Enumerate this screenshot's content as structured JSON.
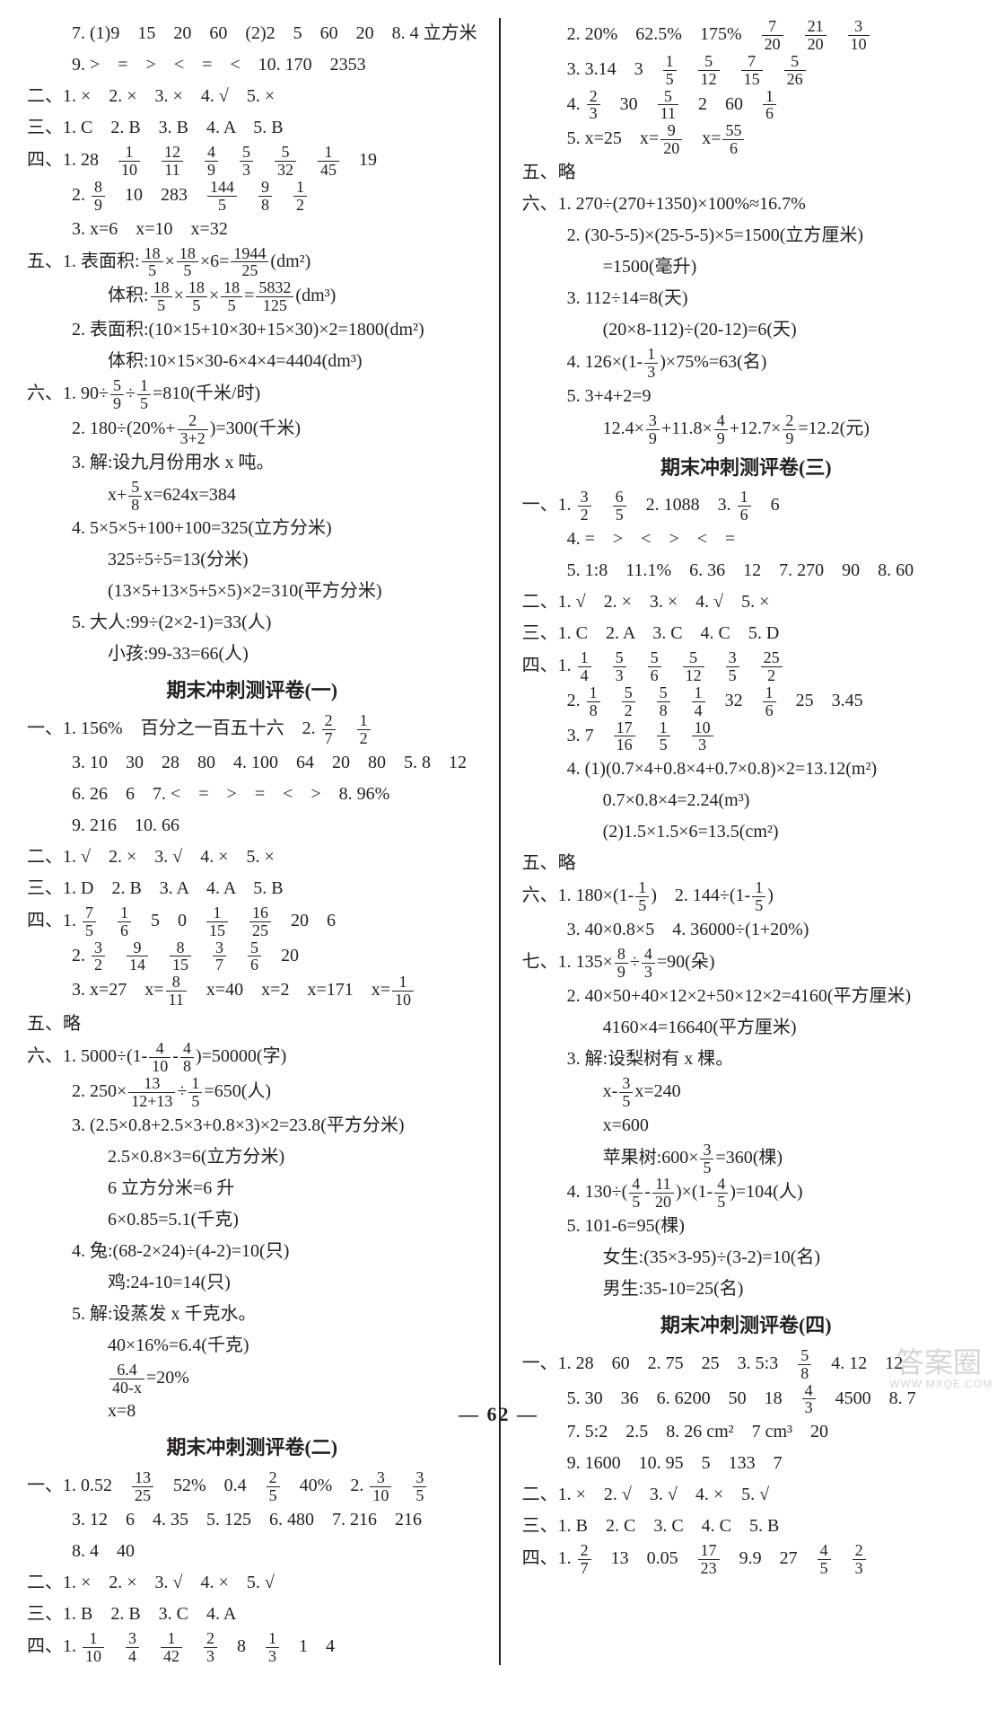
{
  "page_number": "62",
  "page_decoration": "— 62 —",
  "watermark": {
    "main": "答案圈",
    "url": "WWW.MXQE.COM"
  },
  "colors": {
    "text": "#231f20",
    "bg": "#ffffff",
    "divider": "#231f20",
    "watermark": "#888888"
  },
  "font": {
    "family": "SimSun",
    "base_size": 20,
    "heading_size": 22,
    "frac_size": 18
  },
  "left": {
    "l1": "7. (1)9　15　20　60　(2)2　5　60　20　8. 4 立方米",
    "l2": "9. >　=　>　<　=　<　10. 170　2353",
    "l3": "二、1. ×　2. ×　3. ×　4. √　5. ×",
    "l4": "三、1. C　2. B　3. B　4. A　5. B",
    "l5a": "四、1. 28　",
    "f5": [
      [
        "1",
        "10"
      ],
      [
        "12",
        "11"
      ],
      [
        "4",
        "9"
      ],
      [
        "5",
        "3"
      ],
      [
        "5",
        "32"
      ],
      [
        "1",
        "45"
      ]
    ],
    "l5b": "　19",
    "l6a": "2. ",
    "f6": [
      [
        "8",
        "9"
      ]
    ],
    "l6b": "　10　283　",
    "f6c": [
      [
        "144",
        "5"
      ],
      [
        "9",
        "8"
      ],
      [
        "1",
        "2"
      ]
    ],
    "l7": "3. x=6　x=10　x=32",
    "l8a": "五、1. 表面积:",
    "f8a": [
      "18",
      "5"
    ],
    "l8b": "×",
    "f8c": [
      "18",
      "5"
    ],
    "l8d": "×6=",
    "f8e": [
      "1944",
      "25"
    ],
    "l8f": "(dm²)",
    "l9a": "体积:",
    "f9a": [
      "18",
      "5"
    ],
    "l9b": "×",
    "f9c": [
      "18",
      "5"
    ],
    "l9d": "×",
    "f9e": [
      "18",
      "5"
    ],
    "l9f": "=",
    "f9g": [
      "5832",
      "125"
    ],
    "l9h": "(dm³)",
    "l10": "2. 表面积:(10×15+10×30+15×30)×2=1800(dm²)",
    "l11": "体积:10×15×30-6×4×4=4404(dm³)",
    "l12a": "六、1. 90÷",
    "f12a": [
      "5",
      "9"
    ],
    "l12b": "÷",
    "f12c": [
      "1",
      "5"
    ],
    "l12d": "=810(千米/时)",
    "l13a": "2. 180÷(20%+",
    "f13a": [
      "2",
      "3+2"
    ],
    "l13b": ")=300(千米)",
    "l14": "3. 解:设九月份用水 x 吨。",
    "l15a": "x+",
    "f15a": [
      "5",
      "8"
    ],
    "l15b": "x=624x=384",
    "l16": "4. 5×5×5+100+100=325(立方分米)",
    "l17": "325÷5÷5=13(分米)",
    "l18": "(13×5+13×5+5×5)×2=310(平方分米)",
    "l19": "5. 大人:99÷(2×2-1)=33(人)",
    "l20": "小孩:99-33=66(人)",
    "h1": "期末冲刺测评卷(一)",
    "l21a": "一、1. 156%　百分之一百五十六　2. ",
    "f21": [
      [
        "2",
        "7"
      ],
      [
        "1",
        "2"
      ]
    ],
    "l22": "3. 10　30　28　80　4. 100　64　20　80　5. 8　12",
    "l23": "6. 26　6　7. <　=　>　=　<　>　8. 96%",
    "l24": "9. 216　10. 66",
    "l25": "二、1. √　2. ×　3. √　4. ×　5. ×",
    "l26": "三、1. D　2. B　3. A　4. A　5. B",
    "l27a": "四、1. ",
    "f27": [
      [
        "7",
        "5"
      ],
      [
        "1",
        "6"
      ]
    ],
    "l27b": "　5　0　",
    "f27c": [
      [
        "1",
        "15"
      ],
      [
        "16",
        "25"
      ]
    ],
    "l27d": "　20　6",
    "l28a": "2. ",
    "f28": [
      [
        "3",
        "2"
      ],
      [
        "9",
        "14"
      ],
      [
        "8",
        "15"
      ],
      [
        "3",
        "7"
      ],
      [
        "5",
        "6"
      ]
    ],
    "l28b": "　20",
    "l29a": "3. x=27　x=",
    "f29a": [
      "8",
      "11"
    ],
    "l29b": "　x=40　x=2　x=171　x=",
    "f29c": [
      "1",
      "10"
    ],
    "l30": "五、略",
    "l31a": "六、1. 5000÷(1-",
    "f31a": [
      "4",
      "10"
    ],
    "l31b": "-",
    "f31c": [
      "4",
      "8"
    ],
    "l31d": ")=50000(字)",
    "l32a": "2. 250×",
    "f32a": [
      "13",
      "12+13"
    ],
    "l32b": "÷",
    "f32c": [
      "1",
      "5"
    ],
    "l32d": "=650(人)",
    "l33": "3. (2.5×0.8+2.5×3+0.8×3)×2=23.8(平方分米)",
    "l34": "2.5×0.8×3=6(立方分米)",
    "l35": "6 立方分米=6 升",
    "l36": "6×0.85=5.1(千克)",
    "l37": "4. 兔:(68-2×24)÷(4-2)=10(只)",
    "l38": "鸡:24-10=14(只)",
    "l39": "5. 解:设蒸发 x 千克水。",
    "l40": "40×16%=6.4(千克)",
    "l41a": "",
    "f41": [
      "6.4",
      "40-x"
    ],
    "l41b": "=20%",
    "l42": "x=8",
    "h2": "期末冲刺测评卷(二)",
    "l43a": "一、1. 0.52　",
    "f43a": [
      "13",
      "25"
    ],
    "l43b": "　52%　0.4　",
    "f43c": [
      "2",
      "5"
    ],
    "l43d": "　40%　2. ",
    "f43e": [
      [
        "3",
        "10"
      ],
      [
        "3",
        "5"
      ]
    ],
    "l44": "3. 12　6　4. 35　5. 125　6. 480　7. 216　216",
    "l45": "8. 4　40",
    "l46": "二、1. ×　2. ×　3. √　4. ×　5. √",
    "l47": "三、1. B　2. B　3. C　4. A",
    "l48a": "四、1. ",
    "f48": [
      [
        "1",
        "10"
      ],
      [
        "3",
        "4"
      ],
      [
        "1",
        "42"
      ],
      [
        "2",
        "3"
      ]
    ],
    "l48b": "　8　",
    "f48c": [
      "1",
      "3"
    ],
    "l48d": "　1　4"
  },
  "right": {
    "r1a": "2. 20%　62.5%　175%　",
    "r1f": [
      [
        "7",
        "20"
      ],
      [
        "21",
        "20"
      ],
      [
        "3",
        "10"
      ]
    ],
    "r2a": "3. 3.14　3　",
    "r2f": [
      [
        "1",
        "5"
      ],
      [
        "5",
        "12"
      ],
      [
        "7",
        "15"
      ],
      [
        "5",
        "26"
      ]
    ],
    "r3a": "4. ",
    "r3f1": [
      "2",
      "3"
    ],
    "r3b": "　30　",
    "r3f2": [
      "5",
      "11"
    ],
    "r3c": "　2　60　",
    "r3f3": [
      "1",
      "6"
    ],
    "r4a": "5. x=25　x=",
    "r4f1": [
      "9",
      "20"
    ],
    "r4b": "　x=",
    "r4f2": [
      "55",
      "6"
    ],
    "r5": "五、略",
    "r6": "六、1. 270÷(270+1350)×100%≈16.7%",
    "r7": "2. (30-5-5)×(25-5-5)×5=1500(立方厘米)",
    "r7b": "=1500(毫升)",
    "r8": "3. 112÷14=8(天)",
    "r9": "(20×8-112)÷(20-12)=6(天)",
    "r10a": "4. 126×(1-",
    "r10f": [
      "1",
      "3"
    ],
    "r10b": ")×75%=63(名)",
    "r11": "5. 3+4+2=9",
    "r12a": "12.4×",
    "r12f1": [
      "3",
      "9"
    ],
    "r12b": "+11.8×",
    "r12f2": [
      "4",
      "9"
    ],
    "r12c": "+12.7×",
    "r12f3": [
      "2",
      "9"
    ],
    "r12d": "=12.2(元)",
    "h3": "期末冲刺测评卷(三)",
    "r13a": "一、1. ",
    "r13f": [
      [
        "3",
        "2"
      ],
      [
        "6",
        "5"
      ]
    ],
    "r13b": "　2. 1088　3. ",
    "r13f2": [
      "1",
      "6"
    ],
    "r13c": "　6",
    "r14": "4. =　>　<　>　<　=",
    "r15": "5. 1:8　11.1%　6. 36　12　7. 270　90　8. 60",
    "r16": "二、1. √　2. ×　3. ×　4. √　5. ×",
    "r17": "三、1. C　2. A　3. C　4. C　5. D",
    "r18a": "四、1. ",
    "r18f": [
      [
        "1",
        "4"
      ],
      [
        "5",
        "3"
      ],
      [
        "5",
        "6"
      ],
      [
        "5",
        "12"
      ],
      [
        "3",
        "5"
      ],
      [
        "25",
        "2"
      ]
    ],
    "r19a": "2. ",
    "r19f": [
      [
        "1",
        "8"
      ],
      [
        "5",
        "2"
      ],
      [
        "5",
        "8"
      ],
      [
        "1",
        "4"
      ]
    ],
    "r19b": "　32　",
    "r19f2": [
      "1",
      "6"
    ],
    "r19c": "　25　3.45",
    "r20a": "3. 7　",
    "r20f": [
      [
        "17",
        "16"
      ],
      [
        "1",
        "5"
      ],
      [
        "10",
        "3"
      ]
    ],
    "r21": "4. (1)(0.7×4+0.8×4+0.7×0.8)×2=13.12(m²)",
    "r22": "0.7×0.8×4=2.24(m³)",
    "r23": "(2)1.5×1.5×6=13.5(cm²)",
    "r24": "五、略",
    "r25a": "六、1. 180×(1-",
    "r25f": [
      "1",
      "5"
    ],
    "r25b": ")　2. 144÷(1-",
    "r25f2": [
      "1",
      "5"
    ],
    "r25c": ")",
    "r26": "3. 40×0.8×5　4. 36000÷(1+20%)",
    "r27a": "七、1. 135×",
    "r27f1": [
      "8",
      "9"
    ],
    "r27b": "÷",
    "r27f2": [
      "4",
      "3"
    ],
    "r27c": "=90(朵)",
    "r28": "2. 40×50+40×12×2+50×12×2=4160(平方厘米)",
    "r29": "4160×4=16640(平方厘米)",
    "r30": "3. 解:设梨树有 x 棵。",
    "r31a": "x-",
    "r31f": [
      "3",
      "5"
    ],
    "r31b": "x=240",
    "r32": "x=600",
    "r33a": "苹果树:600×",
    "r33f": [
      "3",
      "5"
    ],
    "r33b": "=360(棵)",
    "r34a": "4. 130÷(",
    "r34f1": [
      "4",
      "5"
    ],
    "r34b": "-",
    "r34f2": [
      "11",
      "20"
    ],
    "r34c": ")×(1-",
    "r34f3": [
      "4",
      "5"
    ],
    "r34d": ")=104(人)",
    "r35": "5. 101-6=95(棵)",
    "r36": "女生:(35×3-95)÷(3-2)=10(名)",
    "r37": "男生:35-10=25(名)",
    "h4": "期末冲刺测评卷(四)",
    "r38a": "一、1. 28　60　2. 75　25　3. 5:3　",
    "r38f": [
      "5",
      "8"
    ],
    "r38b": "　4. 12　12",
    "r39a": "5. 30　36　6. 6200　50　18　",
    "r39f": [
      "4",
      "3"
    ],
    "r39b": "　4500　8. 7",
    "r40": "7. 5:2　2.5　8. 26 cm²　7 cm³　20",
    "r41": "9. 1600　10. 95　5　133　7",
    "r42": "二、1. ×　2. √　3. √　4. ×　5. √",
    "r43": "三、1. B　2. C　3. C　4. C　5. B",
    "r44a": "四、1. ",
    "r44f1": [
      "2",
      "7"
    ],
    "r44b": "　13　0.05　",
    "r44f2": [
      "17",
      "23"
    ],
    "r44c": "　9.9　27　",
    "r44f3": [
      [
        "4",
        "5"
      ],
      [
        "2",
        "3"
      ]
    ]
  }
}
